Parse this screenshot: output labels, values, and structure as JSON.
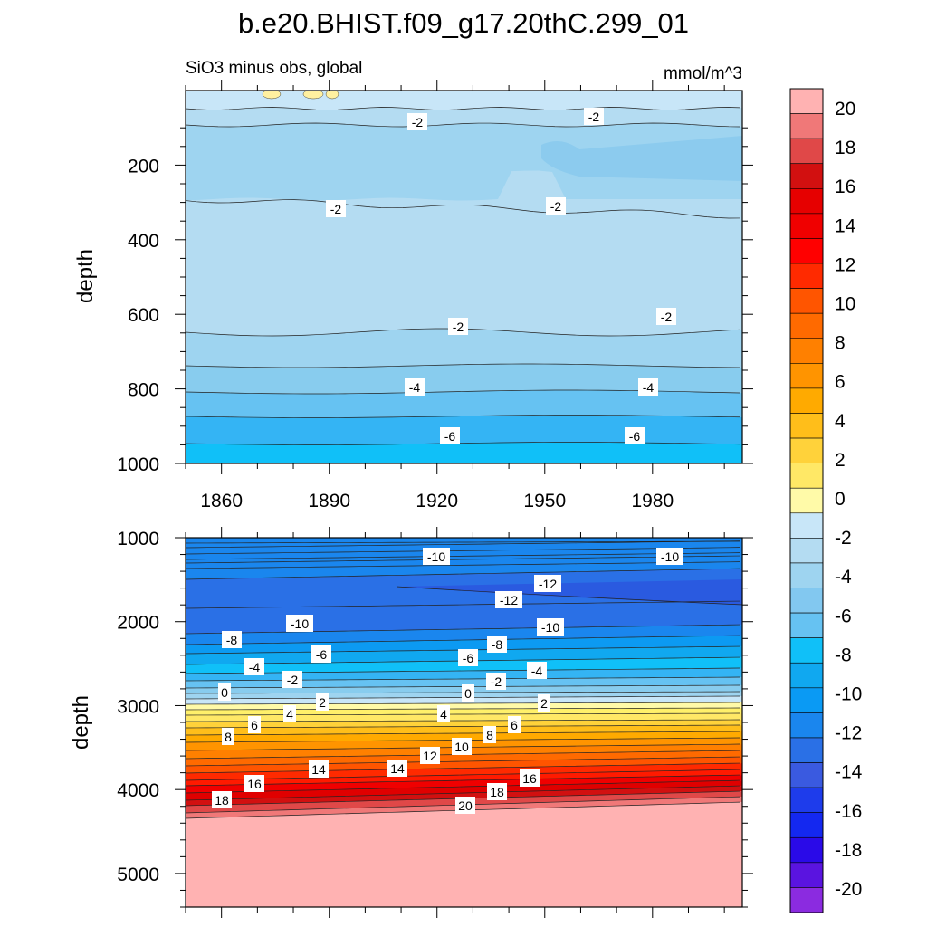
{
  "chart_data": {
    "type": "contour",
    "title": "b.e20.BHIST.f09_g17.20thC.299_01",
    "subtitle_left": "SiO3 minus obs, global",
    "subtitle_right": "mmol/m^3",
    "ylabel": "depth",
    "xlim": [
      1850,
      2005
    ],
    "xticks": [
      1860,
      1890,
      1920,
      1950,
      1980
    ],
    "upper_panel": {
      "ylim": [
        0,
        1000
      ],
      "yticks": [
        200,
        400,
        600,
        800,
        1000
      ],
      "contour_labels": [
        "-2",
        "-2",
        "-2",
        "-2",
        "-2",
        "-2",
        "-4",
        "-4",
        "-6",
        "-6"
      ]
    },
    "lower_panel": {
      "ylim": [
        1000,
        5400
      ],
      "yticks": [
        1000,
        2000,
        3000,
        4000,
        5000
      ],
      "contour_labels": [
        "-10",
        "-10",
        "-12",
        "-12",
        "-10",
        "-10",
        "-8",
        "-8",
        "-6",
        "-6",
        "-4",
        "-4",
        "-2",
        "-2",
        "0",
        "0",
        "2",
        "2",
        "4",
        "4",
        "6",
        "6",
        "8",
        "8",
        "10",
        "12",
        "14",
        "14",
        "16",
        "16",
        "18",
        "18",
        "20"
      ]
    },
    "colorbar": {
      "levels": [
        -20,
        -18,
        -16,
        -14,
        -12,
        -10,
        -8,
        -6,
        -4,
        -2,
        0,
        2,
        4,
        6,
        8,
        10,
        12,
        14,
        16,
        18,
        20
      ],
      "tick_labels": [
        "20",
        "18",
        "16",
        "14",
        "12",
        "10",
        "8",
        "6",
        "4",
        "2",
        "0",
        "-2",
        "-4",
        "-6",
        "-8",
        "-10",
        "-12",
        "-14",
        "-16",
        "-18",
        "-20"
      ]
    }
  }
}
